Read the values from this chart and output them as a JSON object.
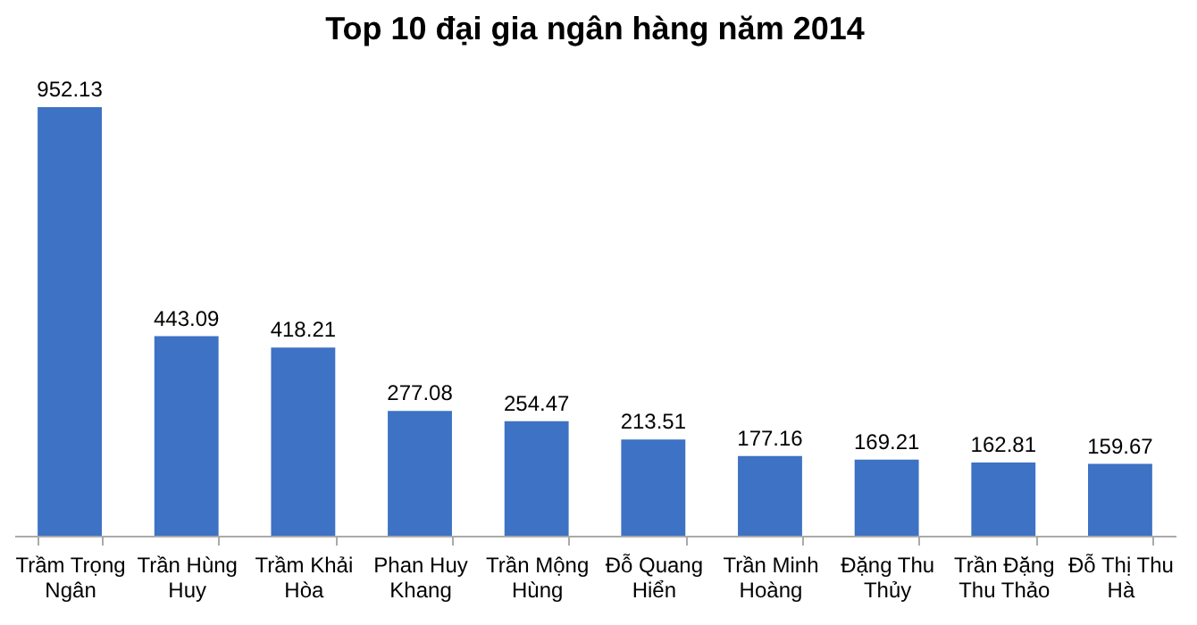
{
  "chart_data": {
    "type": "bar",
    "title": "Top 10 đại gia ngân hàng năm 2014",
    "categories": [
      "Trầm Trọng Ngân",
      "Trần Hùng Huy",
      "Trầm Khải Hòa",
      "Phan Huy Khang",
      "Trần Mộng Hùng",
      "Đỗ Quang Hiển",
      "Trần Minh Hoàng",
      "Đặng Thu Thủy",
      "Trần Đặng Thu Thảo",
      "Đỗ Thị Thu Hà"
    ],
    "values": [
      952.13,
      443.09,
      418.21,
      277.08,
      254.47,
      213.51,
      177.16,
      169.21,
      162.81,
      159.67
    ],
    "color": "#3d72c4",
    "data_labels": true
  }
}
